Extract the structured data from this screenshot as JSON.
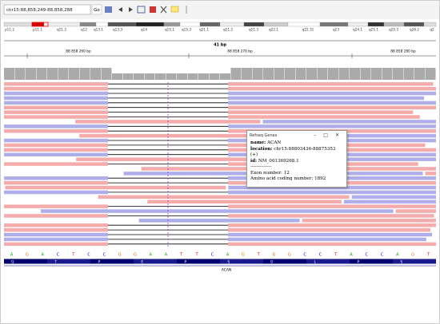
{
  "toolbar": {
    "locus": "chr15:88,858,249-88,858,288",
    "go": "Go"
  },
  "ideogram": {
    "bands": [
      "p11.2",
      "p11.1",
      "q11.2",
      "q12",
      "q13.1",
      "q13.3",
      "q14",
      "q15.1",
      "q15.3",
      "q21.1",
      "q21.2",
      "q21.3",
      "q22.1",
      "q22.31",
      "q23",
      "q24.1",
      "q25.1",
      "q25.3",
      "q26.2",
      "q2"
    ]
  },
  "ruler": {
    "span": "41 bp",
    "labels": [
      "88 858 260 bp",
      "88 858 270 bp",
      "88 858 280 bp"
    ]
  },
  "sequence": {
    "bases": [
      "A",
      "G",
      "A",
      "C",
      "T",
      "C",
      "C",
      "G",
      "G",
      "A",
      "A",
      "T",
      "T",
      "C",
      "A",
      "G",
      "T",
      "G",
      "G",
      "C",
      "C",
      "T",
      "A",
      "C",
      "C",
      "A",
      "G",
      "T"
    ],
    "amino_acids": [
      "Q",
      "T",
      "P",
      "E",
      "P",
      "S",
      "G",
      "L",
      "P",
      "S"
    ]
  },
  "gene": {
    "name": "ACAN"
  },
  "popup": {
    "title": "Refseq Genes",
    "name_label": "name:",
    "name": "ACAN",
    "location_label": "location:",
    "location": "chr15:88803436-88875353 (+)",
    "id_label": "id:",
    "id": "NM_001369268.1",
    "separator": "--------------",
    "exon": "Exon number: 12",
    "aa": "Amino acid coding number: 1892"
  }
}
